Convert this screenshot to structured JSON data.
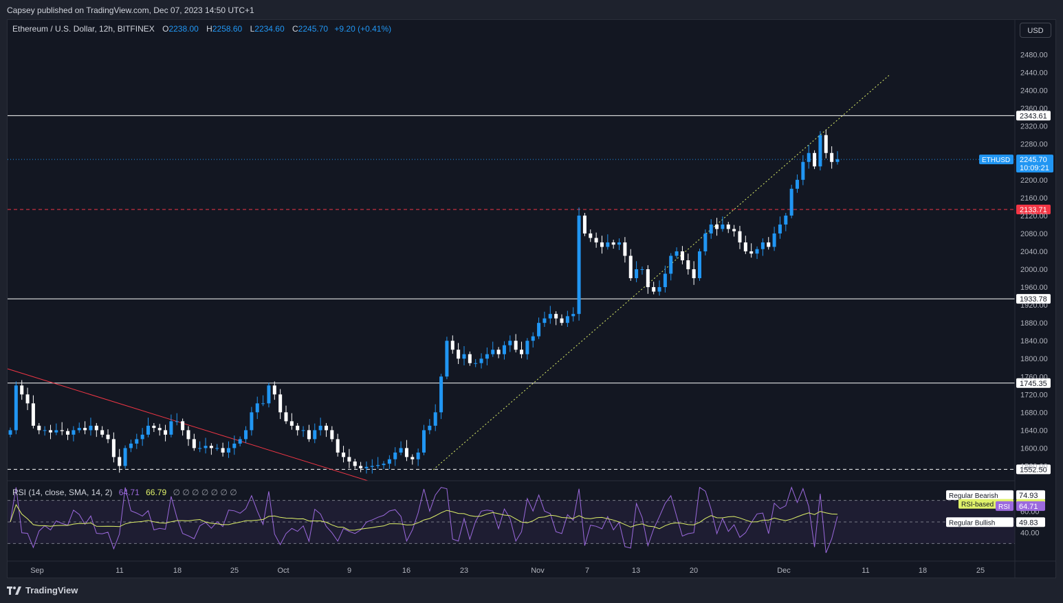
{
  "header": {
    "published_text": "Capsey published on TradingView.com, Dec 07, 2023 14:50 UTC+1"
  },
  "legend": {
    "symbol": "Ethereum / U.S. Dollar, 12h, BITFINEX",
    "o_label": "O",
    "o_value": "2238.00",
    "h_label": "H",
    "h_value": "2258.60",
    "l_label": "L",
    "l_value": "2234.60",
    "c_label": "C",
    "c_value": "2245.70",
    "change": "+9.20 (+0.41%)"
  },
  "rsi_legend": {
    "title": "RSI (14, close, SMA, 14, 2)",
    "rsi_value": "64.71",
    "ma_value": "66.79",
    "empty_values": "∅ ∅ ∅ ∅ ∅ ∅ ∅"
  },
  "currency_button": "USD",
  "footer": {
    "brand": "TradingView",
    "logo_icon": "tradingview-logo-icon"
  },
  "colors": {
    "up": "#2196f3",
    "down": "#ffffff",
    "background": "#131722",
    "trendline": "#f23645",
    "channel": "#e0f26a",
    "rsi": "#9c6ade",
    "rsi_ma": "#e0f26a"
  },
  "chart_data": [
    {
      "type": "candlestick",
      "title": "Ethereum / U.S. Dollar, 12h, BITFINEX",
      "y_ticks": [
        "2480.00",
        "2440.00",
        "2400.00",
        "2360.00",
        "2320.00",
        "2280.00",
        "2200.00",
        "2160.00",
        "2120.00",
        "2080.00",
        "2040.00",
        "2000.00",
        "1960.00",
        "1920.00",
        "1880.00",
        "1840.00",
        "1800.00",
        "1760.00",
        "1720.00",
        "1680.00",
        "1640.00",
        "1600.00",
        "1560.00"
      ],
      "ylim": [
        1530,
        2510
      ],
      "x_tick_labels": [
        "Sep",
        "11",
        "18",
        "25",
        "Oct",
        "9",
        "16",
        "23",
        "Nov",
        "7",
        "13",
        "20",
        "Dec",
        "11",
        "18",
        "25"
      ],
      "horizontal_levels": [
        {
          "value": 2343.61,
          "label": "2343.61",
          "style": "solid"
        },
        {
          "value": 2133.71,
          "label": "2133.71",
          "style": "dashed-red"
        },
        {
          "value": 1933.78,
          "label": "1933.78",
          "style": "solid"
        },
        {
          "value": 1745.35,
          "label": "1745.35",
          "style": "solid"
        },
        {
          "value": 1552.5,
          "label": "1552.50",
          "style": "dashed"
        }
      ],
      "last_price": {
        "label": "ETHUSD",
        "value": "2245.70",
        "countdown": "10:09:21"
      },
      "trendlines": [
        {
          "name": "descending-resistance",
          "from": [
            "Aug 26",
            1780
          ],
          "to": [
            "Oct 13",
            1540
          ],
          "color": "#f23645"
        },
        {
          "name": "ascending-channel",
          "from": [
            "Oct 19",
            1560
          ],
          "to": [
            "Dec 13",
            2420
          ],
          "color": "#e0f26a",
          "style": "dotted"
        }
      ],
      "closes": [
        1640,
        1740,
        1720,
        1700,
        1650,
        1640,
        1640,
        1635,
        1640,
        1638,
        1630,
        1640,
        1645,
        1640,
        1650,
        1640,
        1630,
        1620,
        1580,
        1560,
        1600,
        1610,
        1620,
        1630,
        1650,
        1645,
        1640,
        1630,
        1660,
        1660,
        1640,
        1620,
        1600,
        1600,
        1605,
        1600,
        1600,
        1590,
        1600,
        1610,
        1620,
        1640,
        1680,
        1700,
        1700,
        1740,
        1720,
        1680,
        1660,
        1650,
        1640,
        1640,
        1620,
        1640,
        1650,
        1640,
        1620,
        1590,
        1580,
        1570,
        1560,
        1555,
        1558,
        1560,
        1562,
        1565,
        1575,
        1590,
        1600,
        1580,
        1575,
        1590,
        1640,
        1650,
        1680,
        1760,
        1840,
        1820,
        1800,
        1810,
        1790,
        1790,
        1800,
        1810,
        1820,
        1810,
        1830,
        1840,
        1820,
        1810,
        1840,
        1850,
        1880,
        1890,
        1900,
        1890,
        1880,
        1895,
        1900,
        2120,
        2080,
        2070,
        2060,
        2050,
        2060,
        2055,
        2060,
        2030,
        1980,
        2000,
        2000,
        1960,
        1950,
        1960,
        1990,
        2030,
        2040,
        2020,
        2000,
        1980,
        2040,
        2080,
        2100,
        2090,
        2100,
        2090,
        2085,
        2060,
        2040,
        2035,
        2045,
        2060,
        2050,
        2080,
        2100,
        2120,
        2180,
        2200,
        2240,
        2260,
        2230,
        2300,
        2260,
        2240,
        2246
      ],
      "rsi": {
        "ylim": [
          15,
          85
        ],
        "levels": [
          70,
          50,
          30
        ],
        "y_ticks": [
          "74.93",
          "66.79",
          "64.71",
          "60.00",
          "49.83",
          "40.00"
        ],
        "labels": [
          {
            "text": "Regular Bearish",
            "value": "74.93"
          },
          {
            "text": "RSI-based MA",
            "value": "66.79"
          },
          {
            "text": "RSI",
            "value": "64.71"
          },
          {
            "text": "Regular Bullish",
            "value": "49.83"
          }
        ]
      }
    }
  ]
}
